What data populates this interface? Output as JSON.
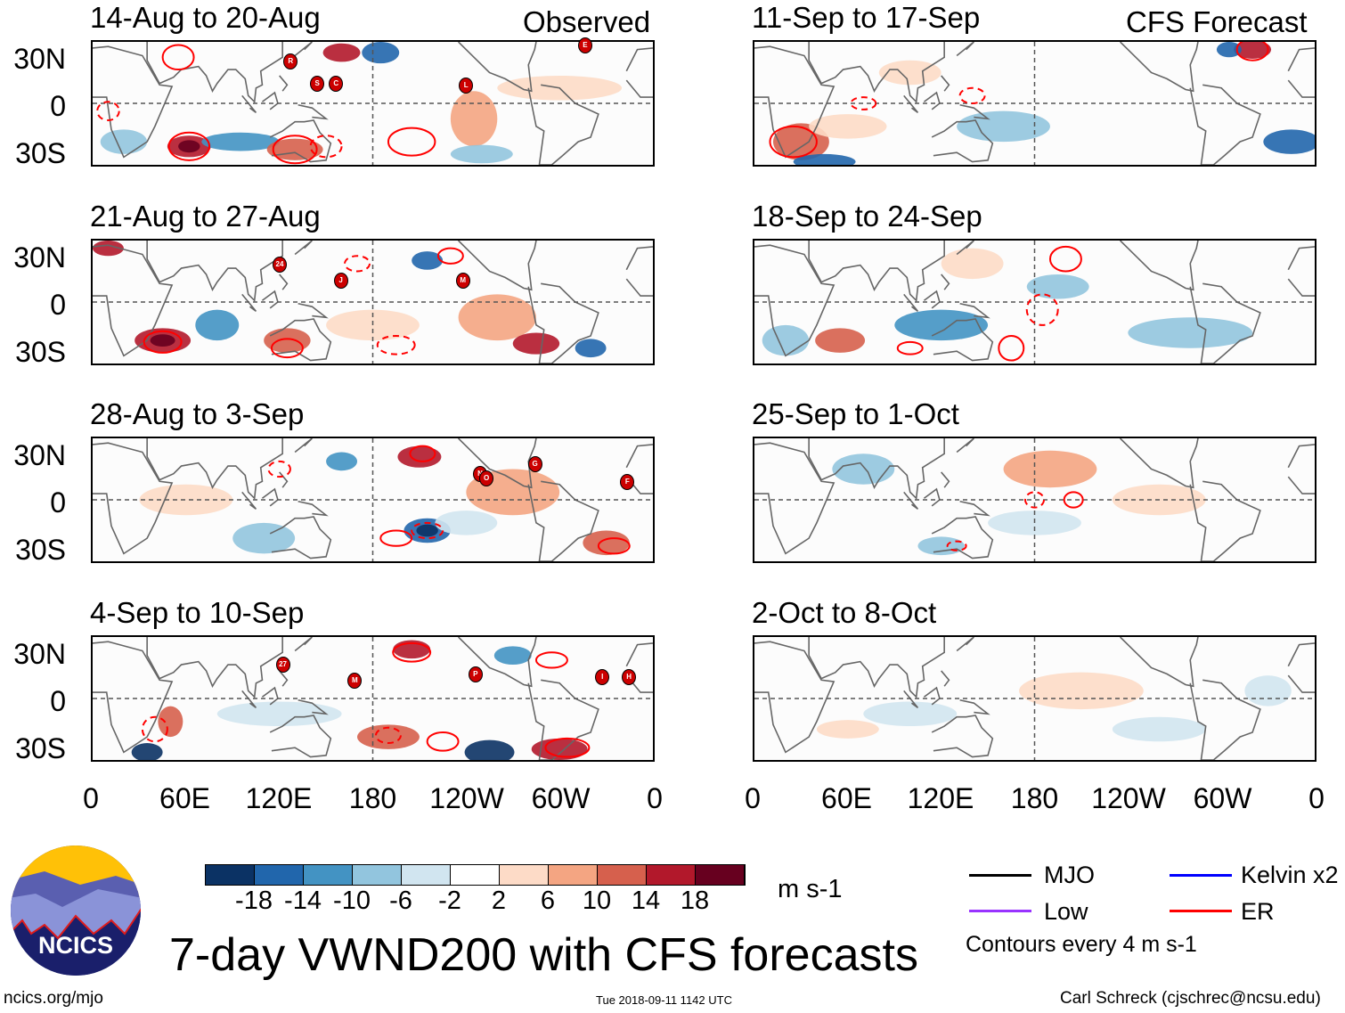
{
  "column_titles": {
    "left": "Observed",
    "right": "CFS Forecast"
  },
  "panels": [
    {
      "title": "14-Aug to 20-Aug",
      "storms": [
        {
          "label": "R",
          "lon": 127,
          "lat": 27
        },
        {
          "label": "S",
          "lon": 144,
          "lat": 13
        },
        {
          "label": "C",
          "lon": 156,
          "lat": 13
        },
        {
          "label": "L",
          "lon": 239,
          "lat": 12
        },
        {
          "label": "E",
          "lon": 315,
          "lat": 37
        }
      ]
    },
    {
      "title": "21-Aug to 27-Aug",
      "storms": [
        {
          "label": "24",
          "lon": 120,
          "lat": 24
        },
        {
          "label": "J",
          "lon": 159,
          "lat": 14
        },
        {
          "label": "M",
          "lon": 237,
          "lat": 14
        }
      ]
    },
    {
      "title": "28-Aug to 3-Sep",
      "storms": [
        {
          "label": "N",
          "lon": 248,
          "lat": 17
        },
        {
          "label": "O",
          "lon": 252,
          "lat": 14
        },
        {
          "label": "G",
          "lon": 283,
          "lat": 23
        },
        {
          "label": "F",
          "lon": 342,
          "lat": 12
        }
      ]
    },
    {
      "title": "4-Sep to 10-Sep",
      "storms": [
        {
          "label": "27",
          "lon": 122,
          "lat": 22
        },
        {
          "label": "M",
          "lon": 168,
          "lat": 12
        },
        {
          "label": "P",
          "lon": 245,
          "lat": 16
        },
        {
          "label": "I",
          "lon": 326,
          "lat": 14
        },
        {
          "label": "H",
          "lon": 343,
          "lat": 14
        }
      ]
    },
    {
      "title": "11-Sep to 17-Sep",
      "storms": []
    },
    {
      "title": "18-Sep to 24-Sep",
      "storms": []
    },
    {
      "title": "25-Sep to 1-Oct",
      "storms": []
    },
    {
      "title": "2-Oct to 8-Oct",
      "storms": []
    }
  ],
  "lat_labels": [
    "30N",
    "0",
    "30S"
  ],
  "lon_labels": [
    "0",
    "60E",
    "120E",
    "180",
    "120W",
    "60W",
    "0"
  ],
  "colorbar": {
    "colors": [
      "#0b3264",
      "#2166ac",
      "#4393c3",
      "#92c5de",
      "#d1e5f0",
      "#ffffff",
      "#fddbc7",
      "#f4a582",
      "#d6604d",
      "#b2182b",
      "#67001f"
    ],
    "labels": [
      "-18",
      "-14",
      "-10",
      "-6",
      "-2",
      "2",
      "6",
      "10",
      "14",
      "18"
    ],
    "units": "m s-1"
  },
  "legend": [
    {
      "label": "MJO",
      "color": "#000000"
    },
    {
      "label": "Kelvin x2",
      "color": "#0000ff"
    },
    {
      "label": "Low",
      "color": "#9933ff"
    },
    {
      "label": "ER",
      "color": "#ff0000"
    }
  ],
  "contour_note": "Contours every 4 m s-1",
  "title": "7-day VWND200 with CFS forecasts",
  "logo_text": "NCICS",
  "footer": {
    "left": "ncics.org/mjo",
    "center": "Tue 2018-09-11 1142 UTC",
    "right": "Carl Schreck (cjschrec@ncsu.edu)"
  }
}
